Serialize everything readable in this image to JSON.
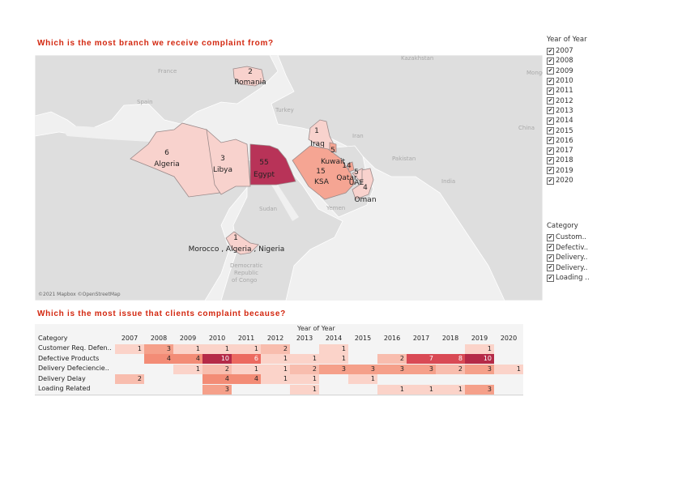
{
  "map_title": "Which is the most branch we receive complaint from?",
  "table_title": "Which is the most issue that clients complaint because?",
  "map": {
    "credit": "©2021 Mapbox ©OpenStreetMap",
    "basemap_labels": [
      "France",
      "Spain",
      "Turkey",
      "Iran",
      "Kazakhstan",
      "Mongo",
      "China",
      "Pakistan",
      "India",
      "Sudan",
      "Yemen",
      "Democratic",
      "Republic",
      "of Congo"
    ],
    "regions": [
      {
        "name": "Romania",
        "count": "2"
      },
      {
        "name": "Algeria",
        "count": "6"
      },
      {
        "name": "Libya",
        "count": "3"
      },
      {
        "name": "Egypt",
        "count": "55"
      },
      {
        "name": "Iraq",
        "count": "1"
      },
      {
        "name": "Kuwait",
        "count": "5"
      },
      {
        "name": "Qatar",
        "count": "14"
      },
      {
        "name": "KSA",
        "count": "15"
      },
      {
        "name": "UAE",
        "count": "5"
      },
      {
        "name": "Oman",
        "count": "4"
      },
      {
        "name": "Morocco , Algeria , Nigeria",
        "count": "1"
      }
    ],
    "colors": {
      "low": "#f8d8d4",
      "mid": "#f5a593",
      "high": "#b83358",
      "water": "#f0f0f0",
      "land": "#dcdcdc"
    }
  },
  "year_filter": {
    "title": "Year of Year",
    "items": [
      "2007",
      "2008",
      "2009",
      "2010",
      "2011",
      "2012",
      "2013",
      "2014",
      "2015",
      "2016",
      "2017",
      "2018",
      "2019",
      "2020"
    ]
  },
  "category_filter": {
    "title": "Category",
    "items": [
      "Custom..",
      "Defectiv..",
      "Delivery..",
      "Delivery..",
      "Loading .."
    ]
  },
  "heatmap": {
    "top_label": "Year of Year",
    "category_header": "Category",
    "years": [
      "2007",
      "2008",
      "2009",
      "2010",
      "2011",
      "2012",
      "2013",
      "2014",
      "2015",
      "2016",
      "2017",
      "2018",
      "2019",
      "2020"
    ],
    "rows": [
      {
        "label": "Customer Req. Defen..",
        "values": [
          1,
          3,
          1,
          1,
          1,
          2,
          null,
          1,
          null,
          null,
          null,
          null,
          1,
          null
        ]
      },
      {
        "label": "Defective Products",
        "values": [
          null,
          4,
          4,
          10,
          6,
          1,
          1,
          1,
          null,
          2,
          7,
          8,
          10,
          null
        ]
      },
      {
        "label": "Delivery Defeciencie..",
        "values": [
          null,
          null,
          1,
          2,
          1,
          1,
          2,
          3,
          3,
          3,
          3,
          2,
          3,
          1
        ]
      },
      {
        "label": "Delivery Delay",
        "values": [
          2,
          null,
          null,
          4,
          4,
          1,
          1,
          null,
          1,
          null,
          null,
          null,
          null,
          null
        ]
      },
      {
        "label": "Loading Related",
        "values": [
          null,
          null,
          null,
          3,
          null,
          null,
          1,
          null,
          null,
          1,
          1,
          1,
          3,
          null
        ]
      }
    ]
  }
}
